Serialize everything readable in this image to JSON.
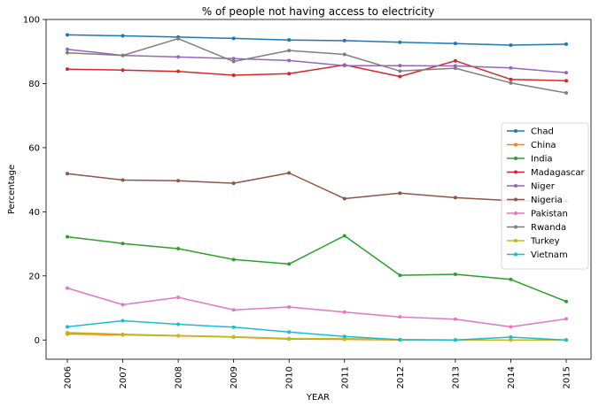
{
  "chart_data": {
    "type": "line",
    "title": "% of people not having access to electricity",
    "xlabel": "YEAR",
    "ylabel": "Percentage",
    "x": [
      "2006",
      "2007",
      "2008",
      "2009",
      "2010",
      "2011",
      "2012",
      "2013",
      "2014",
      "2015"
    ],
    "yticks": [
      "0",
      "20",
      "40",
      "60",
      "80",
      "100"
    ],
    "ylim": [
      -6,
      100
    ],
    "grid": false,
    "legend_position": "right",
    "series": [
      {
        "name": "Chad",
        "color": "#1f77b4",
        "values": [
          95.2,
          94.9,
          94.5,
          94.1,
          93.6,
          93.4,
          92.9,
          92.5,
          92.0,
          92.3
        ]
      },
      {
        "name": "China",
        "color": "#ff7f0e",
        "values": [
          1.9,
          1.6,
          1.3,
          0.9,
          0.3,
          0.2,
          0.0,
          0.0,
          0.0,
          0.0
        ]
      },
      {
        "name": "India",
        "color": "#2ca02c",
        "values": [
          32.2,
          30.1,
          28.5,
          25.1,
          23.7,
          32.5,
          20.2,
          20.5,
          18.9,
          12.0
        ]
      },
      {
        "name": "Madagascar",
        "color": "#d62728",
        "values": [
          84.5,
          84.2,
          83.8,
          82.6,
          83.1,
          85.8,
          82.2,
          87.1,
          81.3,
          80.9
        ]
      },
      {
        "name": "Niger",
        "color": "#9467bd",
        "values": [
          90.7,
          88.8,
          88.3,
          87.8,
          87.2,
          85.6,
          85.6,
          85.5,
          84.9,
          83.4
        ]
      },
      {
        "name": "Nigeria",
        "color": "#8c564b",
        "values": [
          51.9,
          49.9,
          49.7,
          48.9,
          52.1,
          44.1,
          45.8,
          44.4,
          43.5,
          43.3
        ]
      },
      {
        "name": "Pakistan",
        "color": "#e377c2",
        "values": [
          16.2,
          11.0,
          13.3,
          9.4,
          10.3,
          8.7,
          7.2,
          6.5,
          4.1,
          6.6
        ]
      },
      {
        "name": "Rwanda",
        "color": "#7f7f7f",
        "values": [
          89.6,
          88.8,
          94.0,
          86.9,
          90.3,
          89.1,
          83.9,
          84.8,
          80.2,
          77.1
        ]
      },
      {
        "name": "Turkey",
        "color": "#bcbd22",
        "values": [
          2.3,
          1.8,
          1.4,
          1.0,
          0.5,
          0.4,
          0.1,
          0.0,
          0.0,
          0.0
        ]
      },
      {
        "name": "Vietnam",
        "color": "#17becf",
        "values": [
          4.1,
          6.0,
          4.9,
          4.0,
          2.5,
          1.1,
          0.1,
          0.0,
          0.9,
          0.0
        ]
      }
    ]
  }
}
